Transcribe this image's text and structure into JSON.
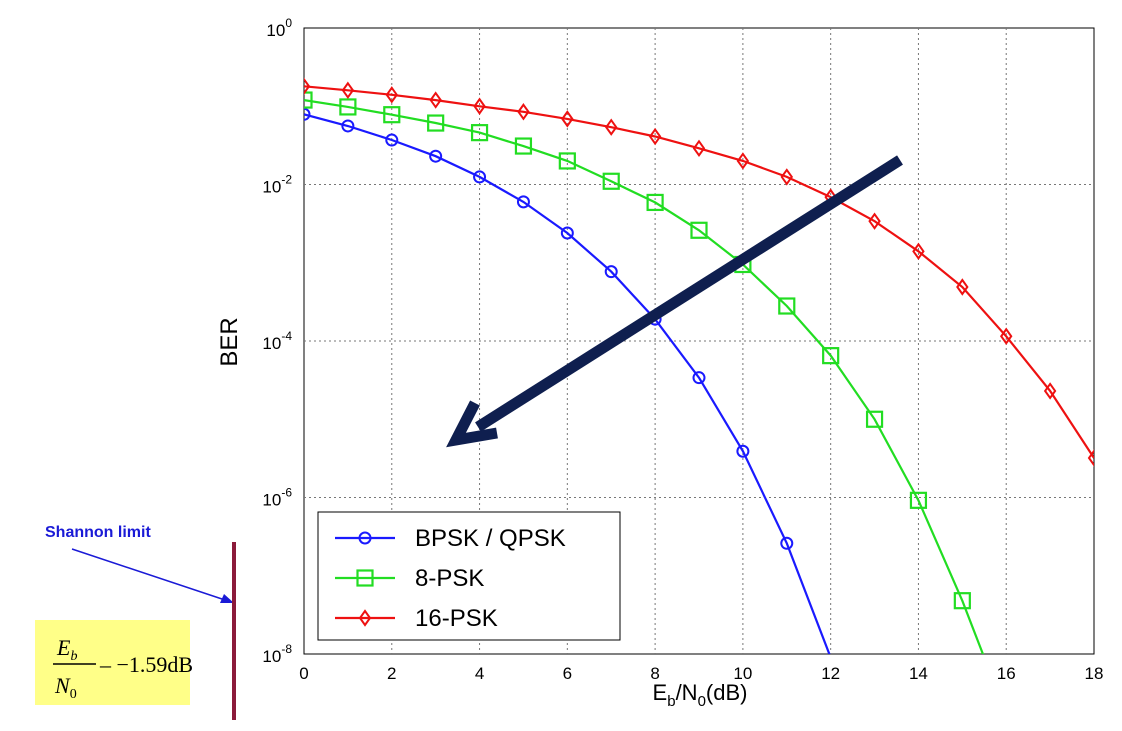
{
  "chart_data": {
    "type": "line",
    "scale_y": "log",
    "x": [
      0,
      1,
      2,
      3,
      4,
      5,
      6,
      7,
      8,
      9,
      10,
      11,
      12,
      13,
      14,
      15,
      16,
      17,
      18
    ],
    "xlim": [
      0,
      18
    ],
    "ylim": [
      1e-08,
      1
    ],
    "x_ticks": [
      0,
      2,
      4,
      6,
      8,
      10,
      12,
      14,
      16,
      18
    ],
    "x_tick_labels": [
      "0",
      "2",
      "4",
      "6",
      "8",
      "10",
      "12",
      "14",
      "16",
      "18"
    ],
    "y_ticks": [
      {
        "value": 1,
        "base": "10",
        "exp": "0"
      },
      {
        "value": 0.01,
        "base": "10",
        "exp": "-2"
      },
      {
        "value": 0.0001,
        "base": "10",
        "exp": "-4"
      },
      {
        "value": 1e-06,
        "base": "10",
        "exp": "-6"
      },
      {
        "value": 1e-08,
        "base": "10",
        "exp": "-8"
      }
    ],
    "xlabel": {
      "main": "E",
      "sub1": "b",
      "mid": "/N",
      "sub2": "0",
      "tail": "(dB)"
    },
    "ylabel": "BER",
    "grid": true,
    "legend_position": "bottom-left",
    "series": [
      {
        "name": "BPSK / QPSK",
        "color": "#1a1aff",
        "marker": "circle",
        "x": [
          0,
          1,
          2,
          3,
          4,
          5,
          6,
          7,
          8,
          9,
          10,
          11,
          12
        ],
        "values": [
          0.079,
          0.056,
          0.037,
          0.023,
          0.0125,
          0.006,
          0.0024,
          0.00077,
          0.00019,
          3.4e-05,
          3.9e-06,
          2.6e-07,
          9e-09
        ]
      },
      {
        "name": "8-PSK",
        "color": "#22dd22",
        "marker": "square",
        "x": [
          0,
          1,
          2,
          3,
          4,
          5,
          6,
          7,
          8,
          9,
          10,
          11,
          12,
          13,
          14,
          15,
          15.5
        ],
        "values": [
          0.12,
          0.098,
          0.078,
          0.061,
          0.046,
          0.031,
          0.02,
          0.011,
          0.0059,
          0.0026,
          0.00095,
          0.00028,
          6.5e-05,
          1e-05,
          9.2e-07,
          4.8e-08,
          9e-09
        ]
      },
      {
        "name": "16-PSK",
        "color": "#ee1111",
        "marker": "diamond",
        "x": [
          0,
          1,
          2,
          3,
          4,
          5,
          6,
          7,
          8,
          9,
          10,
          11,
          12,
          13,
          14,
          15,
          16,
          17,
          18
        ],
        "values": [
          0.18,
          0.16,
          0.14,
          0.12,
          0.1,
          0.085,
          0.069,
          0.054,
          0.041,
          0.029,
          0.02,
          0.0125,
          0.0069,
          0.0034,
          0.0014,
          0.00049,
          0.000115,
          2.3e-05,
          3.2e-06
        ]
      }
    ],
    "annotations": {
      "arrow": {
        "color": "#0f1f4f"
      },
      "shannon": {
        "label": "Shannon limit",
        "label_color": "#1a1ad6",
        "line_color": "#8b1a3a",
        "formula_num": "E",
        "formula_num_sub": "b",
        "formula_den": "N",
        "formula_den_sub": "0",
        "formula_rhs": "– −1.59dB",
        "formula_bg": "#ffff88"
      }
    }
  }
}
